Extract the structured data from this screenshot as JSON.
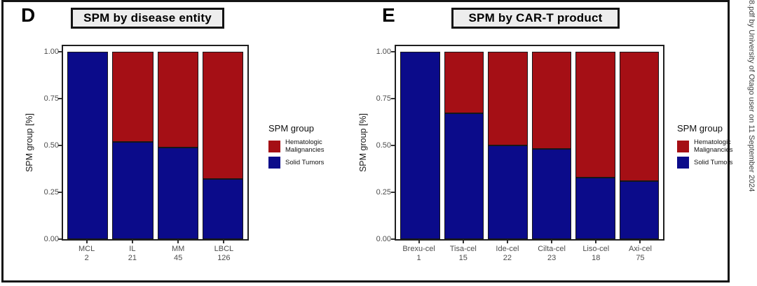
{
  "watermark": {
    "text": "8.pdf by University of Otago user on 11 September 2024"
  },
  "colors": {
    "hematologic": "#A50F15",
    "solid": "#0B0B8A",
    "axis_text": "#4D4D4D",
    "panel_border": "#1F1F1F",
    "frame_border": "#141414",
    "header_bg": "#EDEDED"
  },
  "legend": {
    "title": "SPM group",
    "items": [
      {
        "label": "Hematologic Malignancies",
        "color": "#A50F15"
      },
      {
        "label": "Solid Tumors",
        "color": "#0B0B8A"
      }
    ]
  },
  "chart_data": [
    {
      "type": "bar",
      "stacked": true,
      "panel_letter": "D",
      "title": "SPM by disease entity",
      "ylabel": "SPM group [%]",
      "xlabel": "",
      "ylim": [
        0,
        1
      ],
      "yticks": [
        1.0,
        0.75,
        0.5,
        0.25,
        0.0
      ],
      "grid": false,
      "legend_title": "SPM group",
      "legend_position": "right",
      "categories": [
        "MCL",
        "IL",
        "MM",
        "LBCL"
      ],
      "counts": [
        2,
        21,
        45,
        126
      ],
      "series": [
        {
          "name": "Hematologic Malignancies",
          "color": "#A50F15",
          "values": [
            0.0,
            0.48,
            0.51,
            0.68
          ]
        },
        {
          "name": "Solid Tumors",
          "color": "#0B0B8A",
          "values": [
            1.0,
            0.52,
            0.49,
            0.32
          ]
        }
      ]
    },
    {
      "type": "bar",
      "stacked": true,
      "panel_letter": "E",
      "title": "SPM by CAR-T product",
      "ylabel": "SPM group [%]",
      "xlabel": "",
      "ylim": [
        0,
        1
      ],
      "yticks": [
        1.0,
        0.75,
        0.5,
        0.25,
        0.0
      ],
      "grid": false,
      "legend_title": "SPM group",
      "legend_position": "right",
      "categories": [
        "Brexu-cel",
        "Tisa-cel",
        "Ide-cel",
        "Cilta-cel",
        "Liso-cel",
        "Axi-cel"
      ],
      "counts": [
        1,
        15,
        22,
        23,
        18,
        75
      ],
      "series": [
        {
          "name": "Hematologic Malignancies",
          "color": "#A50F15",
          "values": [
            0.0,
            0.33,
            0.5,
            0.52,
            0.67,
            0.69
          ]
        },
        {
          "name": "Solid Tumors",
          "color": "#0B0B8A",
          "values": [
            1.0,
            0.67,
            0.5,
            0.48,
            0.33,
            0.31
          ]
        }
      ]
    }
  ]
}
